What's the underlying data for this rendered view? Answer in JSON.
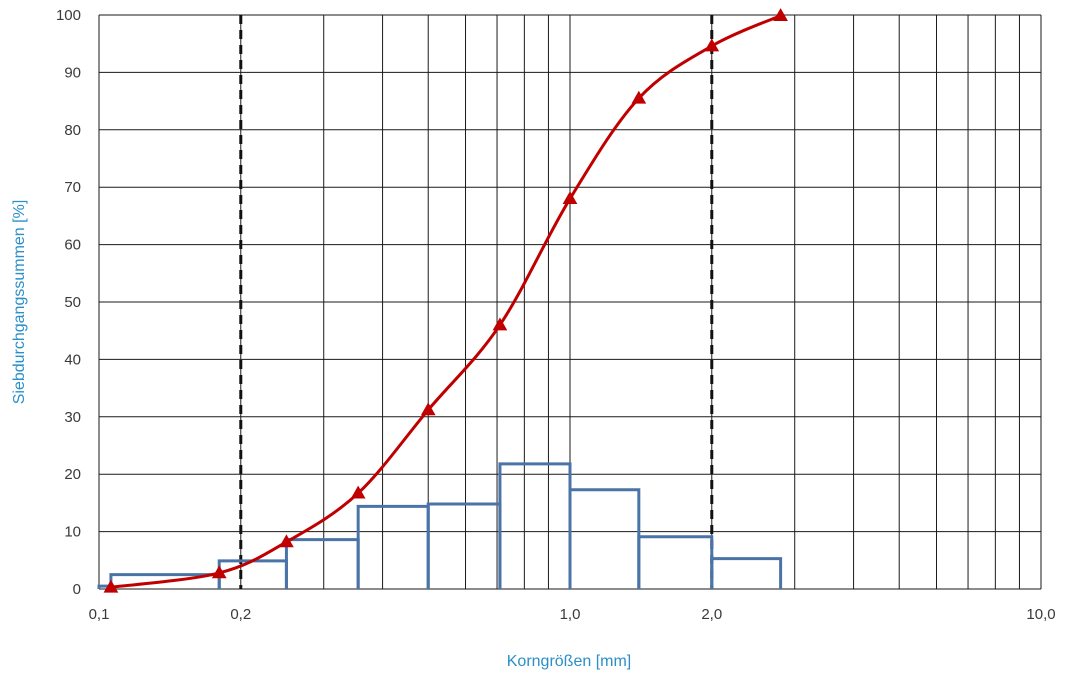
{
  "chart_data": {
    "type": "line",
    "title": "",
    "xlabel": "Korngrößen [mm]",
    "ylabel": "Siebdurchgangssummen [%]",
    "x_scale": "log",
    "xlim": [
      0.1,
      10.0
    ],
    "ylim": [
      0,
      100
    ],
    "x_tick_labels": [
      {
        "value": 0.1,
        "label": "0,1"
      },
      {
        "value": 0.2,
        "label": "0,2"
      },
      {
        "value": 1.0,
        "label": "1,0"
      },
      {
        "value": 2.0,
        "label": "2,0"
      },
      {
        "value": 10.0,
        "label": "10,0"
      }
    ],
    "y_ticks": [
      0,
      10,
      20,
      30,
      40,
      50,
      60,
      70,
      80,
      90,
      100
    ],
    "grid": true,
    "dashed_vertical_lines": [
      0.2,
      2.0
    ],
    "colors": {
      "curve": "#c00000",
      "histogram": "#4a74a8",
      "grid": "#1a1a1a",
      "axis_title": "#2a8fc9"
    },
    "series": [
      {
        "type": "line",
        "marker": "triangle",
        "x": [
          0.106,
          0.18,
          0.25,
          0.355,
          0.5,
          0.71,
          1.0,
          1.4,
          2.0,
          2.8
        ],
        "y": [
          0.3,
          2.8,
          8.2,
          16.7,
          31.2,
          46.0,
          68.0,
          85.5,
          94.6,
          99.9
        ]
      },
      {
        "type": "histogram",
        "bins": [
          {
            "from": 0.1,
            "to": 0.106,
            "value": 0.5
          },
          {
            "from": 0.106,
            "to": 0.18,
            "value": 2.5
          },
          {
            "from": 0.18,
            "to": 0.25,
            "value": 4.9
          },
          {
            "from": 0.25,
            "to": 0.355,
            "value": 8.6
          },
          {
            "from": 0.355,
            "to": 0.5,
            "value": 14.4
          },
          {
            "from": 0.5,
            "to": 0.71,
            "value": 14.8
          },
          {
            "from": 0.71,
            "to": 1.0,
            "value": 21.8
          },
          {
            "from": 1.0,
            "to": 1.4,
            "value": 17.3
          },
          {
            "from": 1.4,
            "to": 2.0,
            "value": 9.1
          },
          {
            "from": 2.0,
            "to": 2.8,
            "value": 5.3
          }
        ]
      }
    ]
  }
}
